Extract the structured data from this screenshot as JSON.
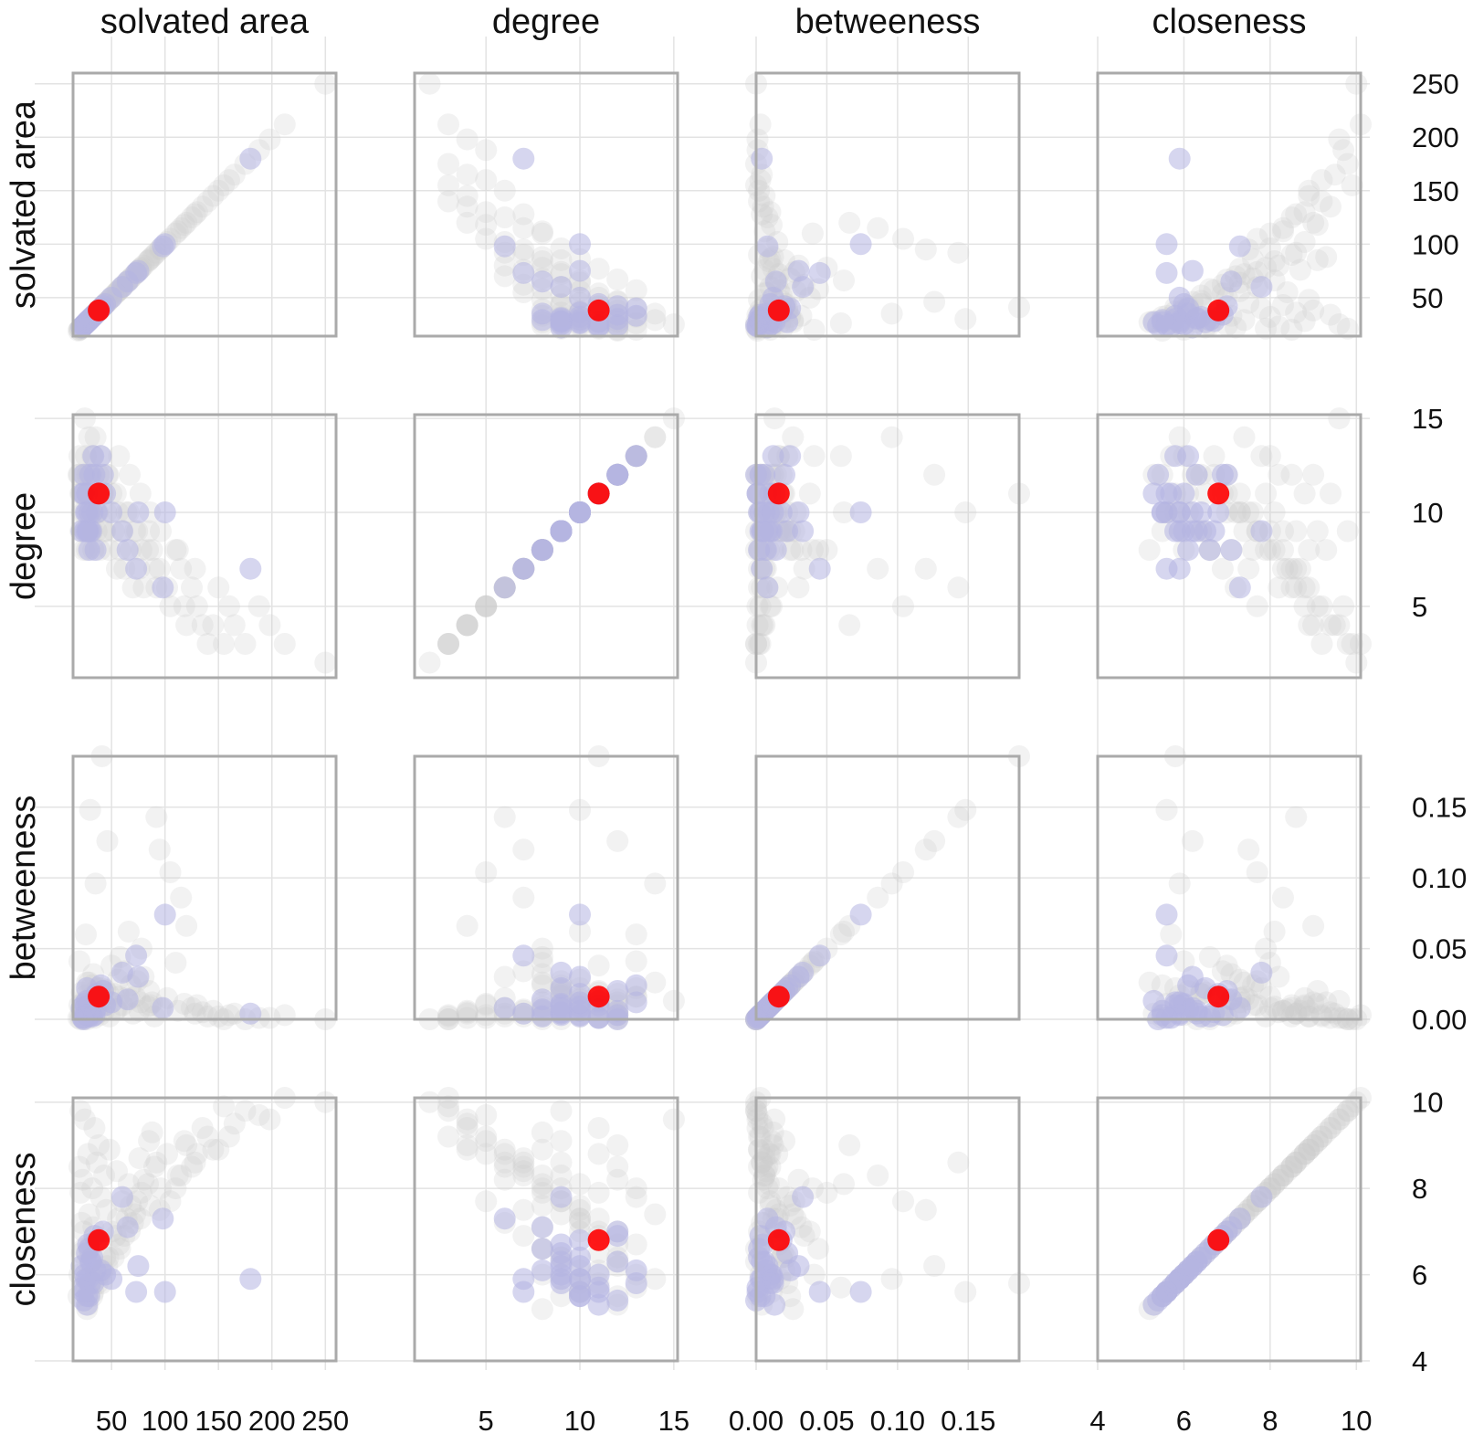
{
  "chart_data": {
    "type": "scatter",
    "layout": "scatterplot-matrix",
    "variables": [
      {
        "key": "sa",
        "label": "solvated area",
        "range": [
          14,
          260
        ],
        "ticks": [
          50,
          100,
          150,
          200,
          250
        ],
        "tick_labels": [
          "50",
          "100",
          "150",
          "200",
          "250"
        ]
      },
      {
        "key": "deg",
        "label": "degree",
        "range": [
          1.2,
          15.2
        ],
        "ticks": [
          5,
          10,
          15
        ],
        "tick_labels": [
          "5",
          "10",
          "15"
        ]
      },
      {
        "key": "bet",
        "label": "betweeness",
        "range": [
          0,
          0.186
        ],
        "ticks": [
          0,
          0.05,
          0.1,
          0.15
        ],
        "tick_labels": [
          "0.00",
          "0.05",
          "0.10",
          "0.15"
        ]
      },
      {
        "key": "clo",
        "label": "closeness",
        "range": [
          4,
          10.1
        ],
        "ticks": [
          4,
          6,
          8,
          10
        ],
        "tick_labels": [
          "4",
          "6",
          "8",
          "10"
        ]
      }
    ],
    "y_tick_labels": [
      [
        "250",
        "200",
        "150",
        "100",
        "50"
      ],
      [
        "15",
        "10",
        "5"
      ],
      [
        "0.15",
        "0.10",
        "0.05",
        "0.00"
      ],
      [
        "10",
        "8",
        "6",
        "4"
      ]
    ],
    "grid": true,
    "legend": "none",
    "colors": {
      "background_points": "#cccccc",
      "highlight_group": "#b4b4e1",
      "focus_point": "#ff0000",
      "frame": "#aaaaaa",
      "grid": "#e3e3e3"
    },
    "groups": {
      "focus": [
        {
          "sa": 38,
          "deg": 11,
          "bet": 0.016,
          "clo": 6.8
        }
      ],
      "highlight": [
        {
          "sa": 180,
          "deg": 7,
          "bet": 0.004,
          "clo": 5.9
        },
        {
          "sa": 100,
          "deg": 10,
          "bet": 0.074,
          "clo": 5.6
        },
        {
          "sa": 98,
          "deg": 6,
          "bet": 0.008,
          "clo": 7.3
        },
        {
          "sa": 73,
          "deg": 7,
          "bet": 0.045,
          "clo": 5.6
        },
        {
          "sa": 75,
          "deg": 10,
          "bet": 0.03,
          "clo": 6.2
        },
        {
          "sa": 60,
          "deg": 9,
          "bet": 0.033,
          "clo": 7.8
        },
        {
          "sa": 44,
          "deg": 11,
          "bet": 0.01,
          "clo": 6.0
        },
        {
          "sa": 42,
          "deg": 12,
          "bet": 0.02,
          "clo": 7.0
        },
        {
          "sa": 33,
          "deg": 13,
          "bet": 0.012,
          "clo": 5.8
        },
        {
          "sa": 30,
          "deg": 12,
          "bet": 0.006,
          "clo": 6.3
        },
        {
          "sa": 28,
          "deg": 9,
          "bet": 0.005,
          "clo": 6.7
        },
        {
          "sa": 25,
          "deg": 9,
          "bet": 0.011,
          "clo": 6.0
        },
        {
          "sa": 27,
          "deg": 10,
          "bet": 0.003,
          "clo": 5.5
        },
        {
          "sa": 29,
          "deg": 8,
          "bet": 0.002,
          "clo": 6.6
        },
        {
          "sa": 26,
          "deg": 10,
          "bet": 0.009,
          "clo": 5.9
        },
        {
          "sa": 31,
          "deg": 9,
          "bet": 0.004,
          "clo": 6.3
        },
        {
          "sa": 35,
          "deg": 8,
          "bet": 0.007,
          "clo": 6.1
        },
        {
          "sa": 23,
          "deg": 11,
          "bet": 0.001,
          "clo": 5.7
        },
        {
          "sa": 24,
          "deg": 12,
          "bet": 0.0,
          "clo": 5.4
        },
        {
          "sa": 28,
          "deg": 9,
          "bet": 0.003,
          "clo": 5.9
        },
        {
          "sa": 32,
          "deg": 10,
          "bet": 0.002,
          "clo": 6.4
        },
        {
          "sa": 22,
          "deg": 9,
          "bet": 0.008,
          "clo": 6.2
        },
        {
          "sa": 27,
          "deg": 11,
          "bet": 0.013,
          "clo": 5.3
        },
        {
          "sa": 36,
          "deg": 10,
          "bet": 0.018,
          "clo": 6.8
        },
        {
          "sa": 30,
          "deg": 9,
          "bet": 0.01,
          "clo": 5.8
        },
        {
          "sa": 34,
          "deg": 12,
          "bet": 0.003,
          "clo": 6.9
        },
        {
          "sa": 40,
          "deg": 13,
          "bet": 0.024,
          "clo": 6.1
        },
        {
          "sa": 29,
          "deg": 10,
          "bet": 0.006,
          "clo": 5.5
        },
        {
          "sa": 65,
          "deg": 8,
          "bet": 0.014,
          "clo": 7.1
        },
        {
          "sa": 50,
          "deg": 10,
          "bet": 0.012,
          "clo": 5.9
        },
        {
          "sa": 27,
          "deg": 9,
          "bet": 0.022,
          "clo": 6.5
        },
        {
          "sa": 24,
          "deg": 11,
          "bet": 0.001,
          "clo": 5.6
        }
      ],
      "background": [
        {
          "sa": 250,
          "deg": 2,
          "bet": 0.0,
          "clo": 10.0
        },
        {
          "sa": 212,
          "deg": 3,
          "bet": 0.003,
          "clo": 10.1
        },
        {
          "sa": 188,
          "deg": 5,
          "bet": 0.001,
          "clo": 9.7
        },
        {
          "sa": 165,
          "deg": 4,
          "bet": 0.004,
          "clo": 9.5
        },
        {
          "sa": 145,
          "deg": 4,
          "bet": 0.006,
          "clo": 8.9
        },
        {
          "sa": 140,
          "deg": 3,
          "bet": 0.002,
          "clo": 9.2
        },
        {
          "sa": 130,
          "deg": 5,
          "bet": 0.01,
          "clo": 8.8
        },
        {
          "sa": 125,
          "deg": 6,
          "bet": 0.008,
          "clo": 8.5
        },
        {
          "sa": 120,
          "deg": 4,
          "bet": 0.066,
          "clo": 9.0
        },
        {
          "sa": 115,
          "deg": 7,
          "bet": 0.086,
          "clo": 8.3
        },
        {
          "sa": 110,
          "deg": 8,
          "bet": 0.04,
          "clo": 8.0
        },
        {
          "sa": 105,
          "deg": 5,
          "bet": 0.104,
          "clo": 7.7
        },
        {
          "sa": 95,
          "deg": 7,
          "bet": 0.12,
          "clo": 7.5
        },
        {
          "sa": 92,
          "deg": 6,
          "bet": 0.143,
          "clo": 8.6
        },
        {
          "sa": 88,
          "deg": 8,
          "bet": 0.012,
          "clo": 9.3
        },
        {
          "sa": 85,
          "deg": 9,
          "bet": 0.02,
          "clo": 9.1
        },
        {
          "sa": 80,
          "deg": 6,
          "bet": 0.03,
          "clo": 8.2
        },
        {
          "sa": 78,
          "deg": 8,
          "bet": 0.05,
          "clo": 7.9
        },
        {
          "sa": 76,
          "deg": 7,
          "bet": 0.006,
          "clo": 8.7
        },
        {
          "sa": 72,
          "deg": 9,
          "bet": 0.016,
          "clo": 7.4
        },
        {
          "sa": 70,
          "deg": 6,
          "bet": 0.004,
          "clo": 7.2
        },
        {
          "sa": 68,
          "deg": 8,
          "bet": 0.024,
          "clo": 7.6
        },
        {
          "sa": 66,
          "deg": 10,
          "bet": 0.062,
          "clo": 8.1
        },
        {
          "sa": 62,
          "deg": 7,
          "bet": 0.034,
          "clo": 6.9
        },
        {
          "sa": 60,
          "deg": 9,
          "bet": 0.01,
          "clo": 7.7
        },
        {
          "sa": 58,
          "deg": 8,
          "bet": 0.044,
          "clo": 6.6
        },
        {
          "sa": 56,
          "deg": 10,
          "bet": 0.028,
          "clo": 7.3
        },
        {
          "sa": 55,
          "deg": 7,
          "bet": 0.007,
          "clo": 8.4
        },
        {
          "sa": 52,
          "deg": 9,
          "bet": 0.018,
          "clo": 6.4
        },
        {
          "sa": 50,
          "deg": 11,
          "bet": 0.038,
          "clo": 7.0
        },
        {
          "sa": 48,
          "deg": 8,
          "bet": 0.002,
          "clo": 8.9
        },
        {
          "sa": 46,
          "deg": 12,
          "bet": 0.126,
          "clo": 6.2
        },
        {
          "sa": 45,
          "deg": 10,
          "bet": 0.014,
          "clo": 7.5
        },
        {
          "sa": 43,
          "deg": 9,
          "bet": 0.006,
          "clo": 8.3
        },
        {
          "sa": 41,
          "deg": 11,
          "bet": 0.186,
          "clo": 5.8
        },
        {
          "sa": 40,
          "deg": 13,
          "bet": 0.022,
          "clo": 7.8
        },
        {
          "sa": 38,
          "deg": 12,
          "bet": 0.012,
          "clo": 9.0
        },
        {
          "sa": 37,
          "deg": 10,
          "bet": 0.008,
          "clo": 6.1
        },
        {
          "sa": 36,
          "deg": 9,
          "bet": 0.004,
          "clo": 8.6
        },
        {
          "sa": 35,
          "deg": 14,
          "bet": 0.096,
          "clo": 5.9
        },
        {
          "sa": 34,
          "deg": 11,
          "bet": 0.001,
          "clo": 9.4
        },
        {
          "sa": 33,
          "deg": 8,
          "bet": 0.032,
          "clo": 7.1
        },
        {
          "sa": 32,
          "deg": 13,
          "bet": 0.016,
          "clo": 8.0
        },
        {
          "sa": 31,
          "deg": 12,
          "bet": 0.003,
          "clo": 6.7
        },
        {
          "sa": 30,
          "deg": 10,
          "bet": 0.148,
          "clo": 5.6
        },
        {
          "sa": 29,
          "deg": 14,
          "bet": 0.026,
          "clo": 7.4
        },
        {
          "sa": 28,
          "deg": 11,
          "bet": 0.009,
          "clo": 8.8
        },
        {
          "sa": 27,
          "deg": 12,
          "bet": 0.0,
          "clo": 6.3
        },
        {
          "sa": 26,
          "deg": 13,
          "bet": 0.06,
          "clo": 5.7
        },
        {
          "sa": 25,
          "deg": 15,
          "bet": 0.013,
          "clo": 9.6
        },
        {
          "sa": 24,
          "deg": 10,
          "bet": 0.002,
          "clo": 7.0
        },
        {
          "sa": 23,
          "deg": 12,
          "bet": 0.005,
          "clo": 8.2
        },
        {
          "sa": 22,
          "deg": 11,
          "bet": 0.019,
          "clo": 6.5
        },
        {
          "sa": 21,
          "deg": 9,
          "bet": 0.0,
          "clo": 9.8
        },
        {
          "sa": 20,
          "deg": 13,
          "bet": 0.041,
          "clo": 6.0
        },
        {
          "sa": 19,
          "deg": 12,
          "bet": 0.001,
          "clo": 5.5
        },
        {
          "sa": 155,
          "deg": 3,
          "bet": 0.0,
          "clo": 9.9
        },
        {
          "sa": 135,
          "deg": 4,
          "bet": 0.005,
          "clo": 9.4
        },
        {
          "sa": 118,
          "deg": 5,
          "bet": 0.011,
          "clo": 9.1
        },
        {
          "sa": 102,
          "deg": 6,
          "bet": 0.015,
          "clo": 8.8
        },
        {
          "sa": 90,
          "deg": 7,
          "bet": 0.002,
          "clo": 8.5
        },
        {
          "sa": 84,
          "deg": 8,
          "bet": 0.009,
          "clo": 8.1
        },
        {
          "sa": 74,
          "deg": 9,
          "bet": 0.027,
          "clo": 7.7
        },
        {
          "sa": 64,
          "deg": 10,
          "bet": 0.015,
          "clo": 7.3
        },
        {
          "sa": 54,
          "deg": 11,
          "bet": 0.007,
          "clo": 6.9
        },
        {
          "sa": 44,
          "deg": 9,
          "bet": 0.021,
          "clo": 6.4
        },
        {
          "sa": 39,
          "deg": 8,
          "bet": 0.003,
          "clo": 6.0
        },
        {
          "sa": 33,
          "deg": 10,
          "bet": 0.011,
          "clo": 5.6
        },
        {
          "sa": 28,
          "deg": 12,
          "bet": 0.004,
          "clo": 5.3
        },
        {
          "sa": 26,
          "deg": 9,
          "bet": 0.017,
          "clo": 5.9
        },
        {
          "sa": 24,
          "deg": 8,
          "bet": 0.0,
          "clo": 6.6
        },
        {
          "sa": 22,
          "deg": 10,
          "bet": 0.006,
          "clo": 7.2
        },
        {
          "sa": 21,
          "deg": 11,
          "bet": 0.002,
          "clo": 7.9
        },
        {
          "sa": 20,
          "deg": 12,
          "bet": 0.01,
          "clo": 8.5
        },
        {
          "sa": 198,
          "deg": 4,
          "bet": 0.001,
          "clo": 9.6
        },
        {
          "sa": 175,
          "deg": 3,
          "bet": 0.0,
          "clo": 9.8
        },
        {
          "sa": 160,
          "deg": 5,
          "bet": 0.003,
          "clo": 9.2
        },
        {
          "sa": 150,
          "deg": 6,
          "bet": 0.002,
          "clo": 8.9
        },
        {
          "sa": 128,
          "deg": 7,
          "bet": 0.004,
          "clo": 8.6
        },
        {
          "sa": 112,
          "deg": 8,
          "bet": 0.006,
          "clo": 8.3
        },
        {
          "sa": 96,
          "deg": 9,
          "bet": 0.008,
          "clo": 8.0
        },
        {
          "sa": 86,
          "deg": 10,
          "bet": 0.01,
          "clo": 7.6
        },
        {
          "sa": 77,
          "deg": 11,
          "bet": 0.012,
          "clo": 7.3
        },
        {
          "sa": 67,
          "deg": 12,
          "bet": 0.014,
          "clo": 7.0
        },
        {
          "sa": 57,
          "deg": 13,
          "bet": 0.016,
          "clo": 6.7
        },
        {
          "sa": 47,
          "deg": 12,
          "bet": 0.018,
          "clo": 6.4
        },
        {
          "sa": 42,
          "deg": 11,
          "bet": 0.02,
          "clo": 6.1
        },
        {
          "sa": 37,
          "deg": 10,
          "bet": 0.022,
          "clo": 5.8
        },
        {
          "sa": 32,
          "deg": 9,
          "bet": 0.024,
          "clo": 5.5
        },
        {
          "sa": 27,
          "deg": 8,
          "bet": 0.026,
          "clo": 5.2
        }
      ]
    }
  }
}
